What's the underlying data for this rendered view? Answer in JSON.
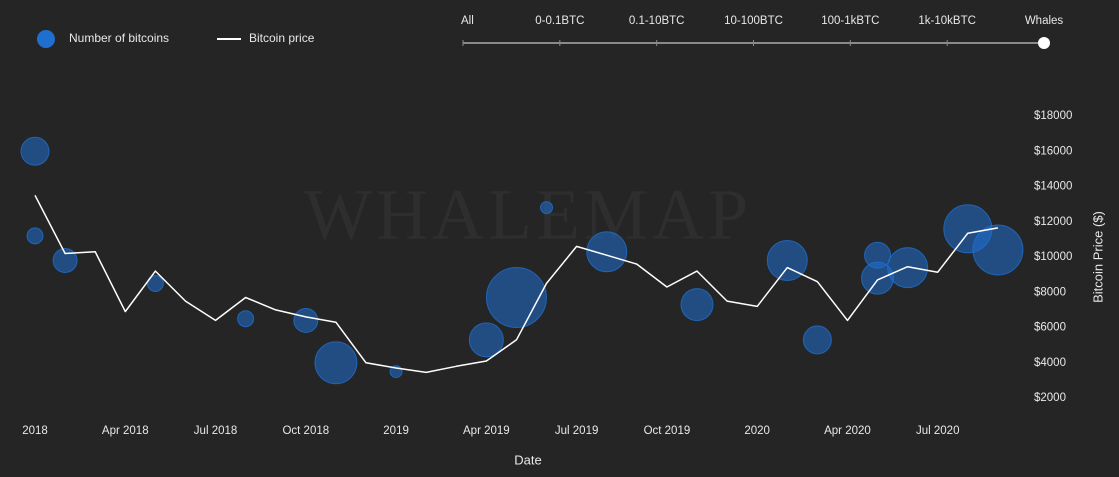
{
  "chart_data": {
    "type": "bubble-line",
    "watermark": "WHALEMAP",
    "filters": [
      "All",
      "0-0.1BTC",
      "0.1-10BTC",
      "10-100BTC",
      "100-1kBTC",
      "1k-10kBTC",
      "Whales"
    ],
    "selected_filter": 6,
    "x_label": "Date",
    "y_label": "Bitcoin Price ($)",
    "y_axis_side": "right",
    "xlim": [
      "2018-01",
      "2020-10"
    ],
    "xticks": [
      {
        "value": "2018-01",
        "label": "2018"
      },
      {
        "value": "2018-04",
        "label": "Apr 2018"
      },
      {
        "value": "2018-07",
        "label": "Jul 2018"
      },
      {
        "value": "2018-10",
        "label": "Oct 2018"
      },
      {
        "value": "2019-01",
        "label": "2019"
      },
      {
        "value": "2019-04",
        "label": "Apr 2019"
      },
      {
        "value": "2019-07",
        "label": "Jul 2019"
      },
      {
        "value": "2019-10",
        "label": "Oct 2019"
      },
      {
        "value": "2020-01",
        "label": "2020"
      },
      {
        "value": "2020-04",
        "label": "Apr 2020"
      },
      {
        "value": "2020-07",
        "label": "Jul 2020"
      }
    ],
    "ylim": [
      2000,
      18000
    ],
    "yticks": [
      {
        "value": 2000,
        "label": "$2000"
      },
      {
        "value": 4000,
        "label": "$4000"
      },
      {
        "value": 6000,
        "label": "$6000"
      },
      {
        "value": 8000,
        "label": "$8000"
      },
      {
        "value": 10000,
        "label": "$10000"
      },
      {
        "value": 12000,
        "label": "$12000"
      },
      {
        "value": 14000,
        "label": "$14000"
      },
      {
        "value": 16000,
        "label": "$16000"
      },
      {
        "value": 18000,
        "label": "$18000"
      }
    ],
    "series": [
      {
        "name": "Number of bitcoins",
        "type": "bubble",
        "color": "#1f6fd1",
        "x": [
          "2018-01",
          "2018-01",
          "2018-02",
          "2018-05",
          "2018-08",
          "2018-10",
          "2018-11",
          "2019-01",
          "2019-04",
          "2019-05",
          "2019-06",
          "2019-08",
          "2019-11",
          "2020-02",
          "2020-03",
          "2020-05",
          "2020-05",
          "2020-06",
          "2020-08",
          "2020-09"
        ],
        "values": [
          16000,
          11200,
          9800,
          8500,
          6500,
          6400,
          4000,
          3500,
          5300,
          7700,
          12800,
          10300,
          7300,
          9800,
          5300,
          8800,
          10100,
          9400,
          11600,
          10400
        ],
        "sizes": [
          14,
          8,
          12,
          8,
          8,
          12,
          21,
          6,
          17,
          30,
          6,
          20,
          16,
          20,
          14,
          16,
          13,
          20,
          24,
          25
        ]
      },
      {
        "name": "Bitcoin price",
        "type": "line",
        "color": "#ffffff",
        "x": [
          "2018-01",
          "2018-02",
          "2018-03",
          "2018-04",
          "2018-05",
          "2018-06",
          "2018-07",
          "2018-08",
          "2018-09",
          "2018-10",
          "2018-11",
          "2018-12",
          "2019-01",
          "2019-02",
          "2019-03",
          "2019-04",
          "2019-05",
          "2019-06",
          "2019-07",
          "2019-08",
          "2019-09",
          "2019-10",
          "2019-11",
          "2019-12",
          "2020-01",
          "2020-02",
          "2020-03",
          "2020-04",
          "2020-05",
          "2020-06",
          "2020-07",
          "2020-08",
          "2020-09"
        ],
        "values": [
          13500,
          10200,
          10300,
          6900,
          9200,
          7500,
          6400,
          7700,
          7000,
          6600,
          6300,
          4000,
          3700,
          3450,
          3800,
          4100,
          5300,
          8500,
          10600,
          10100,
          9600,
          8300,
          9200,
          7500,
          7200,
          9400,
          8600,
          6400,
          8700,
          9450,
          9140,
          11350,
          11650
        ]
      }
    ]
  }
}
